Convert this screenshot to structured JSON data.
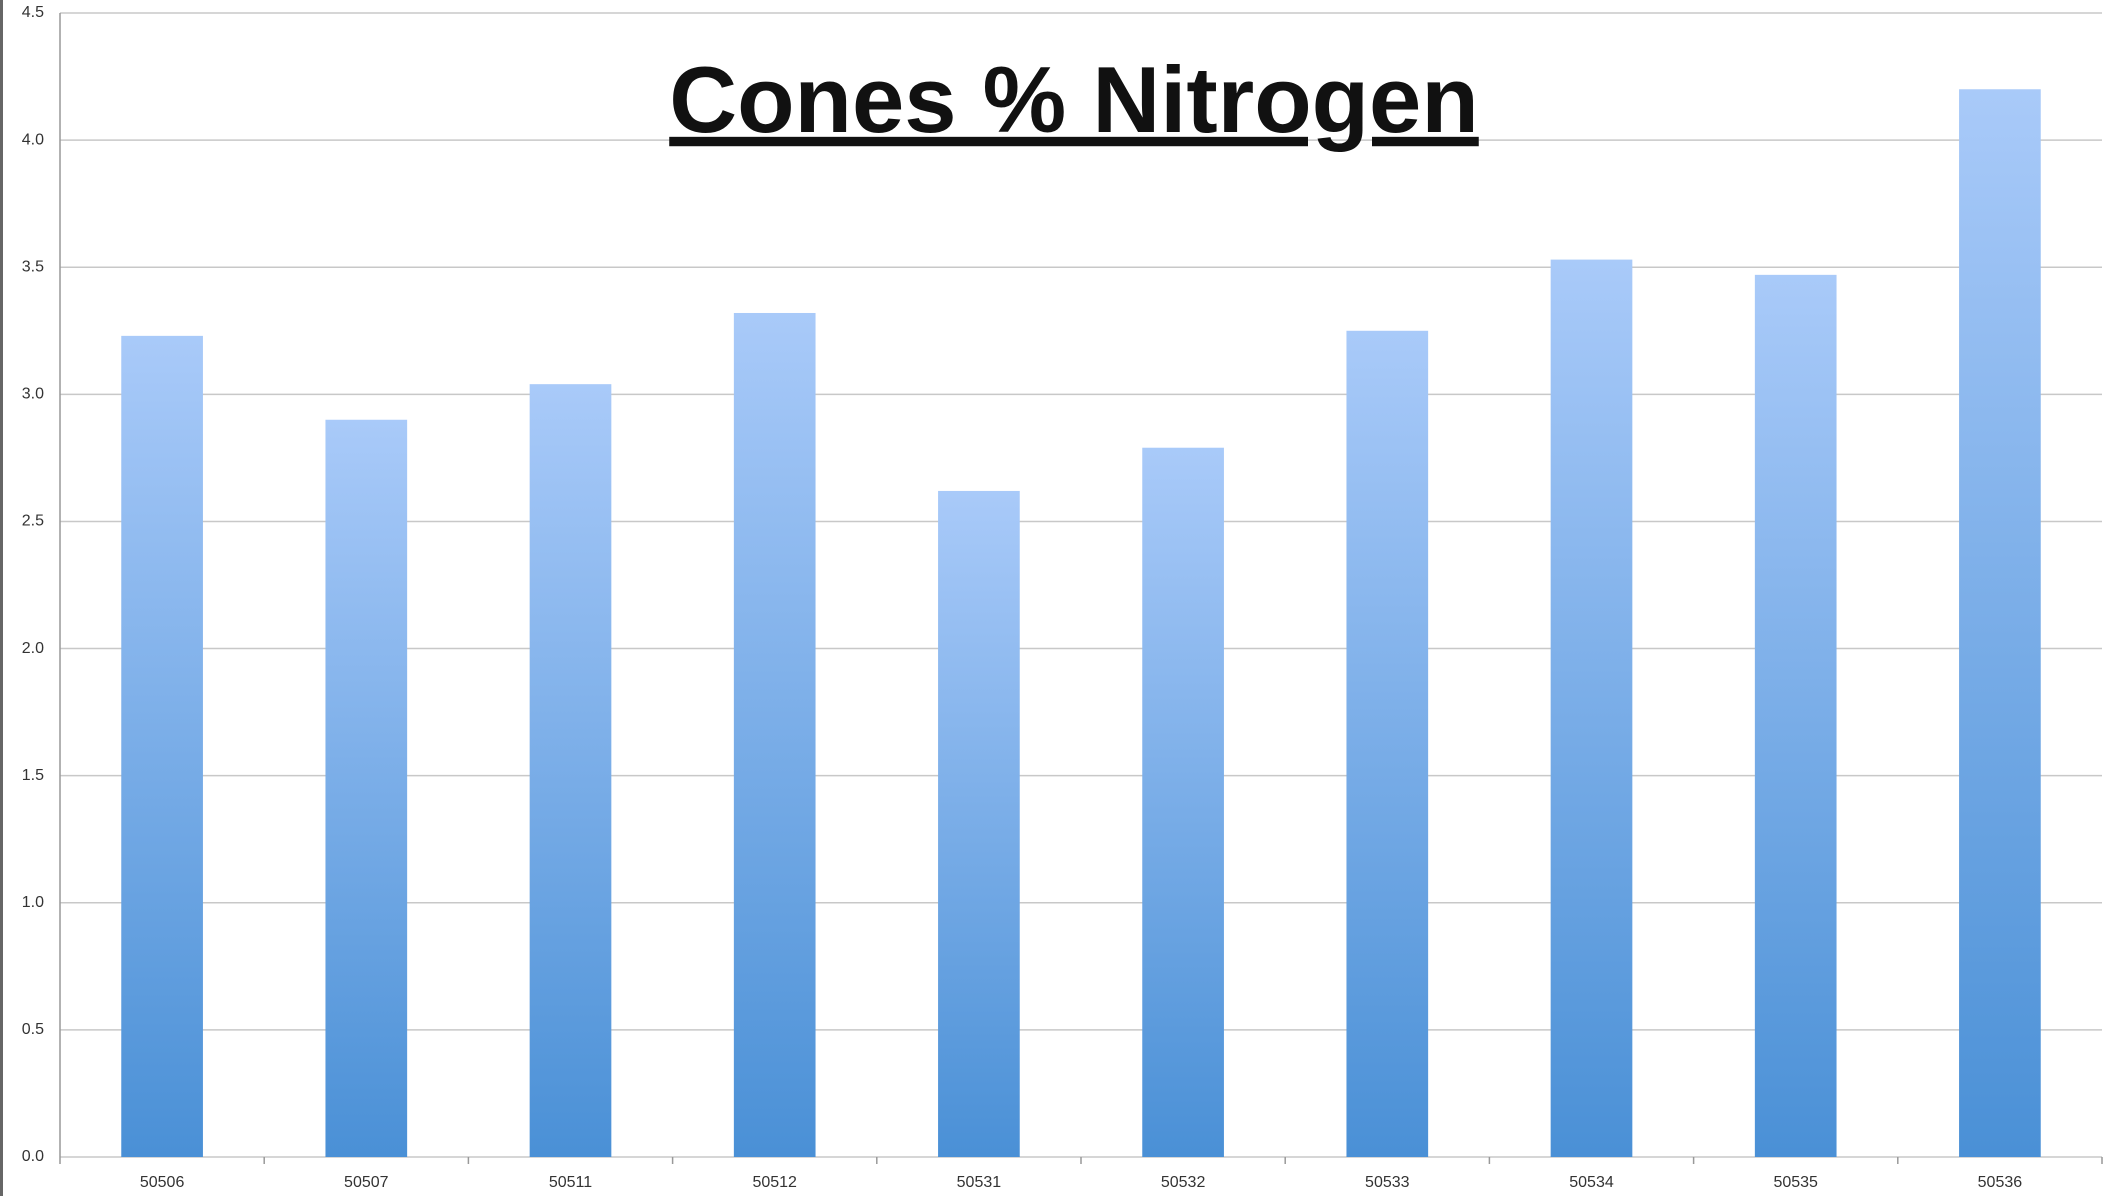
{
  "chart_data": {
    "type": "bar",
    "title": "Cones % Nitrogen",
    "categories": [
      "50506",
      "50507",
      "50511",
      "50512",
      "50531",
      "50532",
      "50533",
      "50534",
      "50535",
      "50536"
    ],
    "values": [
      3.23,
      2.9,
      3.04,
      3.32,
      2.62,
      2.79,
      3.25,
      3.53,
      3.47,
      4.2
    ],
    "color": "#4a90d6",
    "ylim": [
      0,
      4.5
    ],
    "yticks": [
      {
        "value": 0,
        "label": "0.0"
      },
      0.5,
      {
        "value": 1,
        "label": "1.0"
      },
      1.5,
      {
        "value": 2,
        "label": "2.0"
      },
      2.5,
      {
        "value": 3,
        "label": "3.0"
      },
      3.5,
      {
        "value": 4,
        "label": "4.0"
      },
      4.5
    ],
    "grid": true
  }
}
